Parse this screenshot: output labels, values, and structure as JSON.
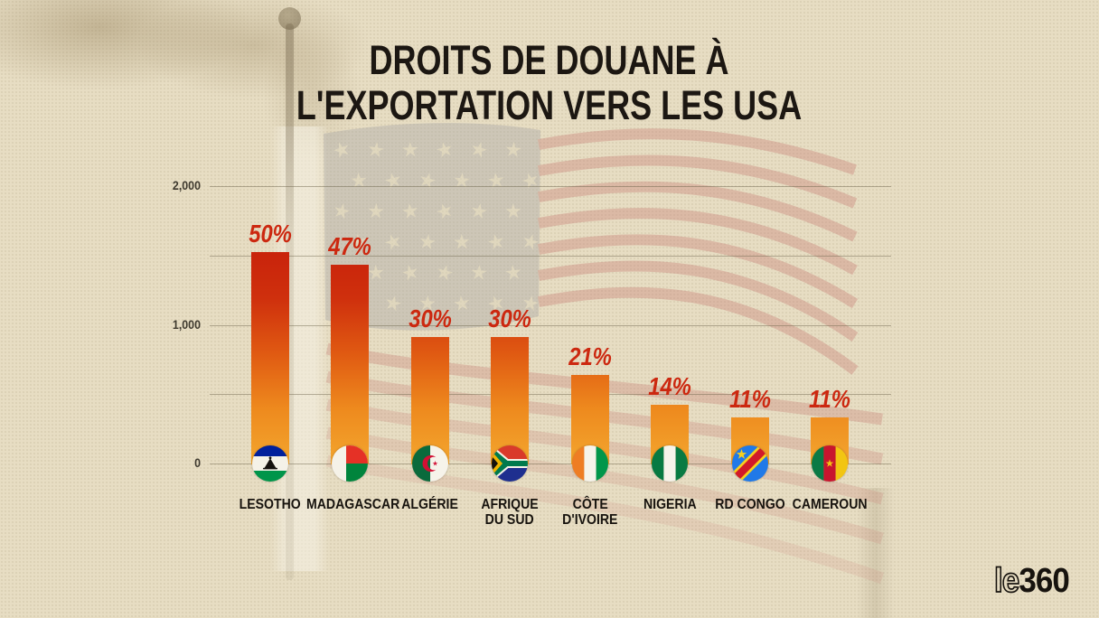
{
  "title": {
    "line1": "DROITS DE DOUANE À",
    "line2": "L'EXPORTATION VERS LES USA"
  },
  "logo": {
    "prefix": "le",
    "suffix": "360"
  },
  "colors": {
    "background": "#e7ddc3",
    "title_text": "#1c1712",
    "value_label": "#cc2810",
    "grid": "#695f48",
    "bar_gradient_stops_bottom_to_top": [
      "#f3a62e",
      "#ee8a1e",
      "#e05a12",
      "#cf300d",
      "#c9230b"
    ]
  },
  "chart_data": {
    "type": "bar",
    "title": "DROITS DE DOUANE À L'EXPORTATION VERS LES USA",
    "xlabel": "",
    "ylabel": "",
    "ylim": [
      0,
      2000
    ],
    "grid": true,
    "gridline_values": [
      0,
      500,
      1000,
      1500,
      2000
    ],
    "yticks": [
      {
        "value": 2000,
        "label": "2,000"
      },
      {
        "value": 1000,
        "label": "1,000"
      },
      {
        "value": 0,
        "label": "0"
      }
    ],
    "categories": [
      "LESOTHO",
      "MADAGASCAR",
      "ALGÉRIE",
      "AFRIQUE DU SUD",
      "CÔTE D'IVOIRE",
      "NIGERIA",
      "RD CONGO",
      "CAMEROUN"
    ],
    "values": [
      50,
      47,
      30,
      30,
      21,
      14,
      11,
      11
    ],
    "bars": [
      {
        "country": "LESOTHO",
        "label_lines": [
          "LESOTHO"
        ],
        "value": 50,
        "value_label": "50%",
        "flag": "lesotho"
      },
      {
        "country": "MADAGASCAR",
        "label_lines": [
          "MADAGASCAR"
        ],
        "value": 47,
        "value_label": "47%",
        "flag": "madagascar"
      },
      {
        "country": "ALGÉRIE",
        "label_lines": [
          "ALGÉRIE"
        ],
        "value": 30,
        "value_label": "30%",
        "flag": "algerie"
      },
      {
        "country": "AFRIQUE DU SUD",
        "label_lines": [
          "AFRIQUE",
          "DU SUD"
        ],
        "value": 30,
        "value_label": "30%",
        "flag": "afrique-du-sud"
      },
      {
        "country": "CÔTE D'IVOIRE",
        "label_lines": [
          "CÔTE",
          "D'IVOIRE"
        ],
        "value": 21,
        "value_label": "21%",
        "flag": "cote-divoire"
      },
      {
        "country": "NIGERIA",
        "label_lines": [
          "NIGERIA"
        ],
        "value": 14,
        "value_label": "14%",
        "flag": "nigeria"
      },
      {
        "country": "RD CONGO",
        "label_lines": [
          "RD CONGO"
        ],
        "value": 11,
        "value_label": "11%",
        "flag": "rd-congo"
      },
      {
        "country": "CAMEROUN",
        "label_lines": [
          "CAMEROUN"
        ],
        "value": 11,
        "value_label": "11%",
        "flag": "cameroun"
      }
    ]
  }
}
